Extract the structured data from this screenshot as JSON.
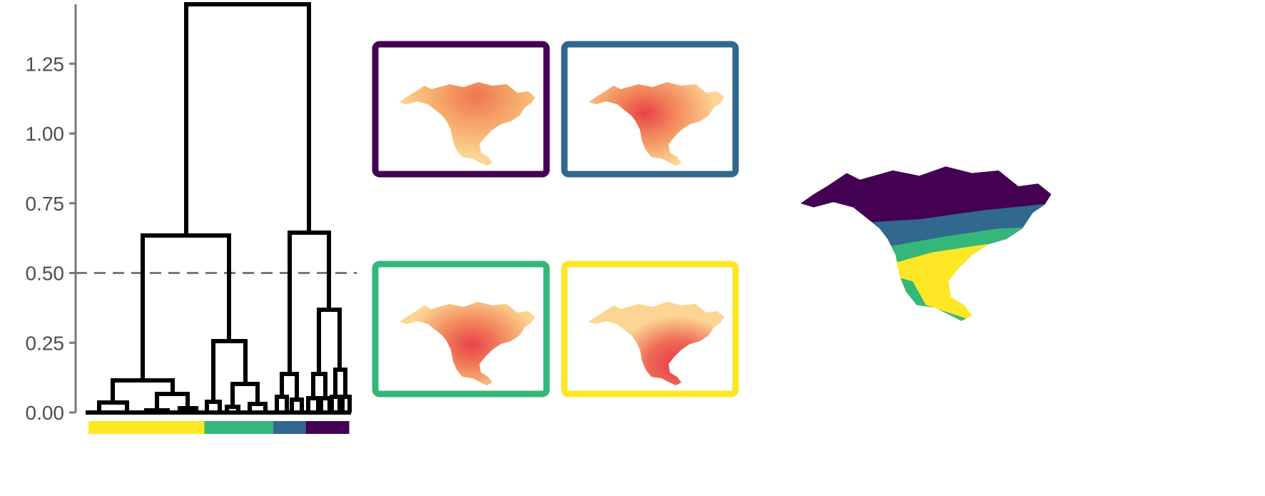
{
  "dendrogram": {
    "y_axis": {
      "range": [
        0,
        1.47
      ],
      "ticks": [
        0.0,
        0.25,
        0.5,
        0.75,
        1.0,
        1.25
      ],
      "tick_labels": [
        "0.00",
        "0.25",
        "0.50",
        "0.75",
        "1.00",
        "1.25"
      ]
    },
    "cut_height": 0.5,
    "cluster_bar": [
      {
        "cluster": 4,
        "color": "#FDE725",
        "fraction": 0.445
      },
      {
        "cluster": 3,
        "color": "#35B779",
        "fraction": 0.265
      },
      {
        "cluster": 2,
        "color": "#31688E",
        "fraction": 0.125
      },
      {
        "cluster": 1,
        "color": "#440154",
        "fraction": 0.165
      }
    ]
  },
  "cluster_maps": [
    {
      "cluster": 1,
      "frame_color": "#440154",
      "hotspot": "northern"
    },
    {
      "cluster": 2,
      "frame_color": "#31688E",
      "hotspot": "mid-latitude"
    },
    {
      "cluster": 3,
      "frame_color": "#35B779",
      "hotspot": "east-central"
    },
    {
      "cluster": 4,
      "frame_color": "#FDE725",
      "hotspot": "southeast"
    }
  ],
  "colors": {
    "viridis": [
      "#440154",
      "#31688E",
      "#35B779",
      "#FDE725"
    ],
    "heat_low": "#FCD592",
    "heat_mid": "#F49260",
    "heat_high": "#E8424A",
    "axis": "#777777",
    "cut_line": "#777777"
  },
  "regional_map": {
    "bands": [
      "#440154",
      "#31688E",
      "#35B779",
      "#FDE725"
    ]
  }
}
